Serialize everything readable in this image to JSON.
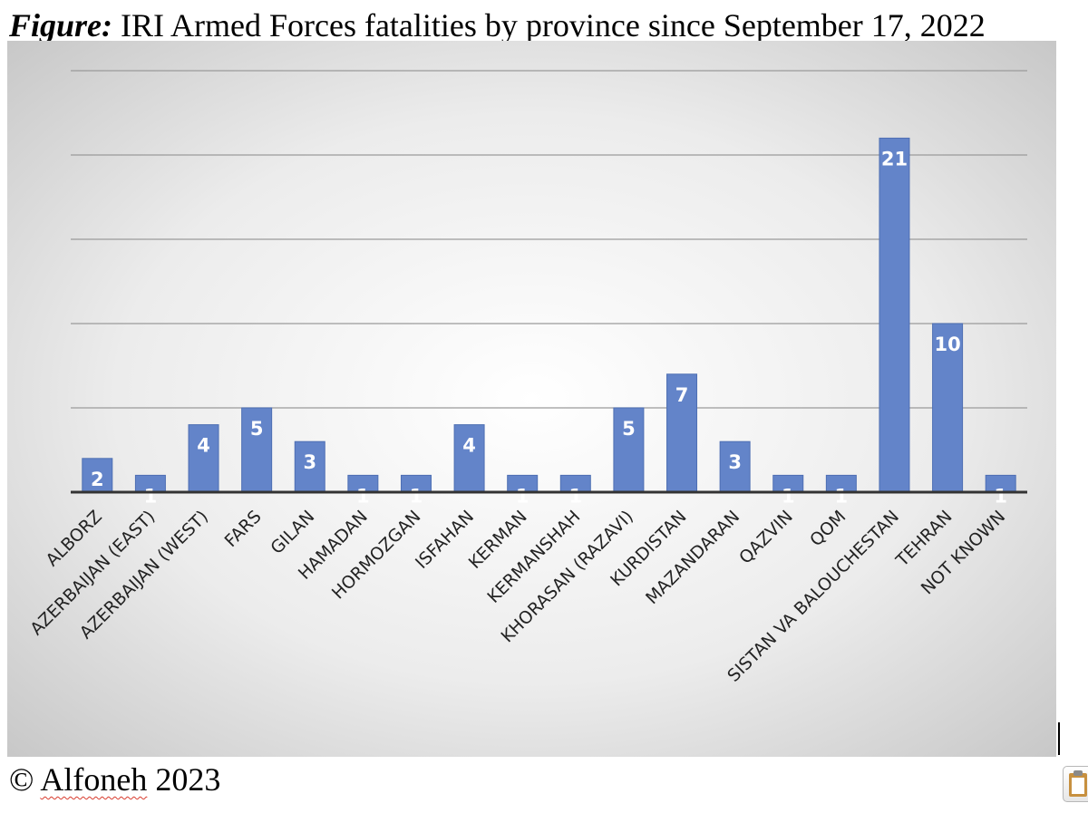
{
  "figure": {
    "title_prefix": "Figure:",
    "title_text": " IRI Armed Forces fatalities by province since September 17, 2022"
  },
  "footer": {
    "copyright_symbol": "©",
    "author": "Alfoneh",
    "year": "2023"
  },
  "chart_data": {
    "type": "bar",
    "title": "IRI Armed Forces fatalities by province since September 17, 2022",
    "xlabel": "",
    "ylabel": "",
    "ylim": [
      0,
      25
    ],
    "grid": true,
    "legend": "none",
    "categories": [
      "ALBORZ",
      "AZERBAIJAN (EAST)",
      "AZERBAIJAN (WEST)",
      "FARS",
      "GILAN",
      "HAMADAN",
      "HORMOZGAN",
      "ISFAHAN",
      "KERMAN",
      "KERMANSHAH",
      "KHORASAN (RAZAVI)",
      "KURDISTAN",
      "MAZANDARAN",
      "QAZVIN",
      "QOM",
      "SISTAN VA BALOUCHESTAN",
      "TEHRAN",
      "NOT KNOWN"
    ],
    "values": [
      2,
      1,
      4,
      5,
      3,
      1,
      1,
      4,
      1,
      1,
      5,
      7,
      3,
      1,
      1,
      21,
      10,
      1
    ],
    "colors": {
      "bar_fill": "#6384c9",
      "bar_stroke": "#4e6fb3",
      "label_text": "#ffffff",
      "axis": "#333333",
      "grid": "#9a9a9a",
      "tick_text": "#222222"
    }
  }
}
